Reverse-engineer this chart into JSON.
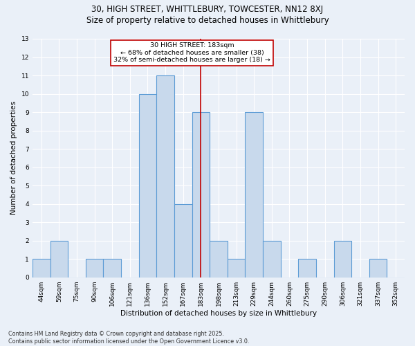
{
  "title1": "30, HIGH STREET, WHITTLEBURY, TOWCESTER, NN12 8XJ",
  "title2": "Size of property relative to detached houses in Whittlebury",
  "xlabel": "Distribution of detached houses by size in Whittlebury",
  "ylabel": "Number of detached properties",
  "categories": [
    "44sqm",
    "59sqm",
    "75sqm",
    "90sqm",
    "106sqm",
    "121sqm",
    "136sqm",
    "152sqm",
    "167sqm",
    "183sqm",
    "198sqm",
    "213sqm",
    "229sqm",
    "244sqm",
    "260sqm",
    "275sqm",
    "290sqm",
    "306sqm",
    "321sqm",
    "337sqm",
    "352sqm"
  ],
  "values": [
    1,
    2,
    0,
    1,
    1,
    0,
    10,
    11,
    4,
    9,
    2,
    1,
    9,
    2,
    0,
    1,
    0,
    2,
    0,
    1,
    0
  ],
  "bar_color": "#c8d9ec",
  "bar_edge_color": "#5b9bd5",
  "bar_linewidth": 0.8,
  "reference_line_x": "183sqm",
  "reference_line_color": "#c00000",
  "annotation_text": "30 HIGH STREET: 183sqm\n← 68% of detached houses are smaller (38)\n32% of semi-detached houses are larger (18) →",
  "annotation_box_color": "#ffffff",
  "annotation_box_edgecolor": "#c00000",
  "ylim": [
    0,
    13
  ],
  "yticks": [
    0,
    1,
    2,
    3,
    4,
    5,
    6,
    7,
    8,
    9,
    10,
    11,
    12,
    13
  ],
  "bg_color": "#eaf0f8",
  "grid_color": "#ffffff",
  "footnote": "Contains HM Land Registry data © Crown copyright and database right 2025.\nContains public sector information licensed under the Open Government Licence v3.0.",
  "title_fontsize": 8.5,
  "subtitle_fontsize": 8.5,
  "axis_label_fontsize": 7.5,
  "tick_fontsize": 6.5,
  "annot_fontsize": 6.8,
  "footnote_fontsize": 5.8
}
